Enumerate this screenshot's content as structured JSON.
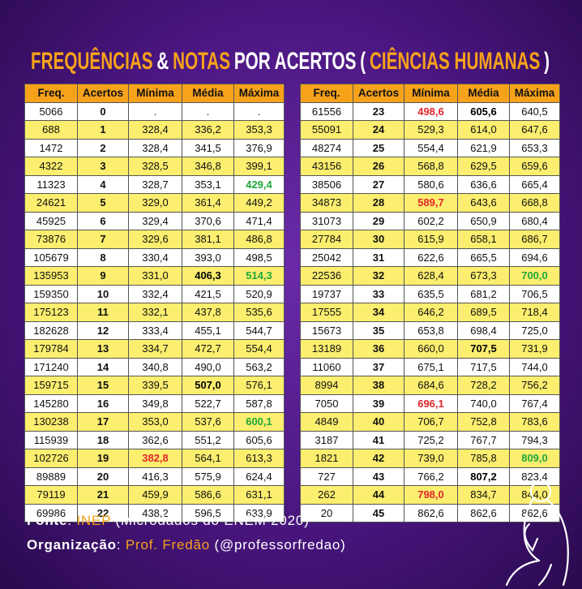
{
  "title": [
    {
      "text": "FREQUÊNCIAS",
      "color": "#f7a21b"
    },
    {
      "text": "&",
      "color": "#ffffff"
    },
    {
      "text": "NOTAS",
      "color": "#f7a21b"
    },
    {
      "text": "POR ACERTOS",
      "color": "#ffffff"
    },
    {
      "text": "(",
      "color": "#ffffff"
    },
    {
      "text": "CIÊNCIAS HUMANAS",
      "color": "#f7a21b"
    },
    {
      "text": ")",
      "color": "#ffffff"
    }
  ],
  "tables": [
    {
      "columns": [
        "Freq.",
        "Acertos",
        "Mínima",
        "Média",
        "Máxima"
      ],
      "rows": [
        [
          "5066",
          "0",
          ".",
          ".",
          "."
        ],
        [
          "688",
          "1",
          "328,4",
          "336,2",
          "353,3"
        ],
        [
          "1472",
          "2",
          "328,4",
          "341,5",
          "376,9"
        ],
        [
          "4322",
          "3",
          "328,5",
          "346,8",
          "399,1"
        ],
        [
          "11323",
          "4",
          "328,7",
          "353,1",
          "429,4"
        ],
        [
          "24621",
          "5",
          "329,0",
          "361,4",
          "449,2"
        ],
        [
          "45925",
          "6",
          "329,4",
          "370,6",
          "471,4"
        ],
        [
          "73876",
          "7",
          "329,6",
          "381,1",
          "486,8"
        ],
        [
          "105679",
          "8",
          "330,4",
          "393,0",
          "498,5"
        ],
        [
          "135953",
          "9",
          "331,0",
          "406,3",
          "514,3"
        ],
        [
          "159350",
          "10",
          "332,4",
          "421,5",
          "520,9"
        ],
        [
          "175123",
          "11",
          "332,1",
          "437,8",
          "535,6"
        ],
        [
          "182628",
          "12",
          "333,4",
          "455,1",
          "544,7"
        ],
        [
          "179784",
          "13",
          "334,7",
          "472,7",
          "554,4"
        ],
        [
          "171240",
          "14",
          "340,8",
          "490,0",
          "563,2"
        ],
        [
          "159715",
          "15",
          "339,5",
          "507,0",
          "576,1"
        ],
        [
          "145280",
          "16",
          "349,8",
          "522,7",
          "587,8"
        ],
        [
          "130238",
          "17",
          "353,0",
          "537,6",
          "600,1"
        ],
        [
          "115939",
          "18",
          "362,6",
          "551,2",
          "605,6"
        ],
        [
          "102726",
          "19",
          "382,8",
          "564,1",
          "613,3"
        ],
        [
          "89889",
          "20",
          "416,3",
          "575,9",
          "624,4"
        ],
        [
          "79119",
          "21",
          "459,9",
          "586,6",
          "631,1"
        ],
        [
          "69986",
          "22",
          "438,2",
          "596,5",
          "633,9"
        ]
      ],
      "highlights": [
        {
          "row": 4,
          "col": 4,
          "color": "#1fa83a"
        },
        {
          "row": 9,
          "col": 3,
          "color": "#000000"
        },
        {
          "row": 9,
          "col": 4,
          "color": "#1fa83a"
        },
        {
          "row": 15,
          "col": 3,
          "color": "#000000"
        },
        {
          "row": 17,
          "col": 4,
          "color": "#1fa83a"
        },
        {
          "row": 19,
          "col": 2,
          "color": "#e0262b"
        }
      ]
    },
    {
      "columns": [
        "Freq.",
        "Acertos",
        "Mínima",
        "Média",
        "Máxima"
      ],
      "rows": [
        [
          "61556",
          "23",
          "498,6",
          "605,6",
          "640,5"
        ],
        [
          "55091",
          "24",
          "529,3",
          "614,0",
          "647,6"
        ],
        [
          "48274",
          "25",
          "554,4",
          "621,9",
          "653,3"
        ],
        [
          "43156",
          "26",
          "568,8",
          "629,5",
          "659,6"
        ],
        [
          "38506",
          "27",
          "580,6",
          "636,6",
          "665,4"
        ],
        [
          "34873",
          "28",
          "589,7",
          "643,6",
          "668,8"
        ],
        [
          "31073",
          "29",
          "602,2",
          "650,9",
          "680,4"
        ],
        [
          "27784",
          "30",
          "615,9",
          "658,1",
          "686,7"
        ],
        [
          "25042",
          "31",
          "622,6",
          "665,5",
          "694,6"
        ],
        [
          "22536",
          "32",
          "628,4",
          "673,3",
          "700,0"
        ],
        [
          "19737",
          "33",
          "635,5",
          "681,2",
          "706,5"
        ],
        [
          "17555",
          "34",
          "646,2",
          "689,5",
          "718,4"
        ],
        [
          "15673",
          "35",
          "653,8",
          "698,4",
          "725,0"
        ],
        [
          "13189",
          "36",
          "660,0",
          "707,5",
          "731,9"
        ],
        [
          "11060",
          "37",
          "675,1",
          "717,5",
          "744,0"
        ],
        [
          "8994",
          "38",
          "684,6",
          "728,2",
          "756,2"
        ],
        [
          "7050",
          "39",
          "696,1",
          "740,0",
          "767,4"
        ],
        [
          "4849",
          "40",
          "706,7",
          "752,8",
          "783,6"
        ],
        [
          "3187",
          "41",
          "725,2",
          "767,7",
          "794,3"
        ],
        [
          "1821",
          "42",
          "739,0",
          "785,8",
          "809,0"
        ],
        [
          "727",
          "43",
          "766,2",
          "807,2",
          "823,4"
        ],
        [
          "262",
          "44",
          "798,0",
          "834,7",
          "844,0"
        ],
        [
          "20",
          "45",
          "862,6",
          "862,6",
          "862,6"
        ]
      ],
      "highlights": [
        {
          "row": 0,
          "col": 2,
          "color": "#e0262b"
        },
        {
          "row": 0,
          "col": 3,
          "color": "#000000"
        },
        {
          "row": 5,
          "col": 2,
          "color": "#e0262b"
        },
        {
          "row": 9,
          "col": 4,
          "color": "#1fa83a"
        },
        {
          "row": 13,
          "col": 3,
          "color": "#000000"
        },
        {
          "row": 16,
          "col": 2,
          "color": "#e0262b"
        },
        {
          "row": 19,
          "col": 4,
          "color": "#1fa83a"
        },
        {
          "row": 20,
          "col": 3,
          "color": "#000000"
        },
        {
          "row": 21,
          "col": 2,
          "color": "#e0262b"
        }
      ]
    }
  ],
  "footer": [
    [
      {
        "text": "Fonte",
        "color": "#ffffff",
        "bold": true
      },
      {
        "text": ": ",
        "color": "#ffffff",
        "bold": false
      },
      {
        "text": "INEP",
        "color": "#f7a21b",
        "bold": false
      },
      {
        "text": " (Microdados do ENEM 2020)",
        "color": "#ffffff",
        "bold": false
      }
    ],
    [
      {
        "text": "Organização",
        "color": "#ffffff",
        "bold": true
      },
      {
        "text": ": ",
        "color": "#ffffff",
        "bold": false
      },
      {
        "text": "Prof. Fredão",
        "color": "#f7a21b",
        "bold": false
      },
      {
        "text": " (@professorfredao)",
        "color": "#ffffff",
        "bold": false
      }
    ]
  ]
}
